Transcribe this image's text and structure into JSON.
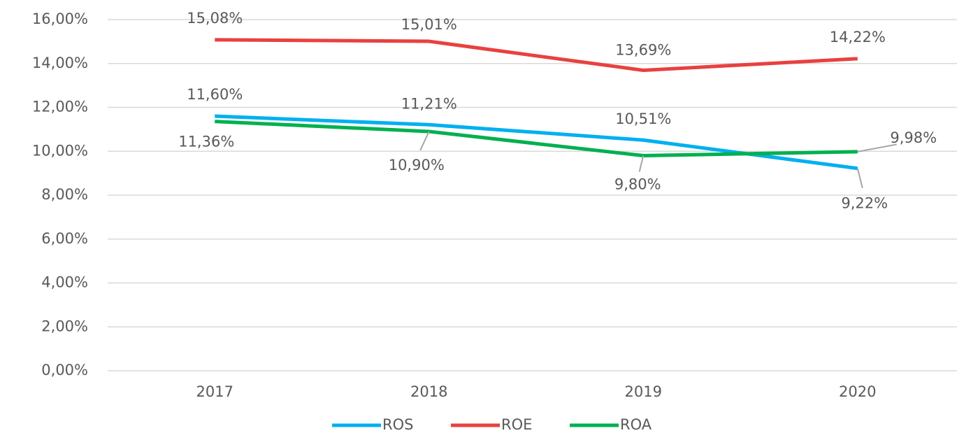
{
  "chart_data": {
    "type": "line",
    "categories": [
      "2017",
      "2018",
      "2019",
      "2020"
    ],
    "ylim": [
      0,
      16
    ],
    "yticks": [
      {
        "value": 0,
        "label": "0,00%"
      },
      {
        "value": 2,
        "label": "2,00%"
      },
      {
        "value": 4,
        "label": "4,00%"
      },
      {
        "value": 6,
        "label": "6,00%"
      },
      {
        "value": 8,
        "label": "8,00%"
      },
      {
        "value": 10,
        "label": "10,00%"
      },
      {
        "value": 12,
        "label": "12,00%"
      },
      {
        "value": 14,
        "label": "14,00%"
      },
      {
        "value": 16,
        "label": "16,00%"
      }
    ],
    "grid": true,
    "legend": "bottom",
    "series": [
      {
        "name": "ROS",
        "color": "#00b0f0",
        "values": [
          11.6,
          11.21,
          10.51,
          9.22
        ],
        "value_labels": [
          "11,60%",
          "11,21%",
          "10,51%",
          "9,22%"
        ]
      },
      {
        "name": "ROE",
        "color": "#e8413f",
        "values": [
          15.08,
          15.01,
          13.69,
          14.22
        ],
        "value_labels": [
          "15,08%",
          "15,01%",
          "13,69%",
          "14,22%"
        ]
      },
      {
        "name": "ROA",
        "color": "#00b050",
        "values": [
          11.36,
          10.9,
          9.8,
          9.98
        ],
        "value_labels": [
          "11,36%",
          "10,90%",
          "9,80%",
          "9,98%"
        ]
      }
    ]
  }
}
